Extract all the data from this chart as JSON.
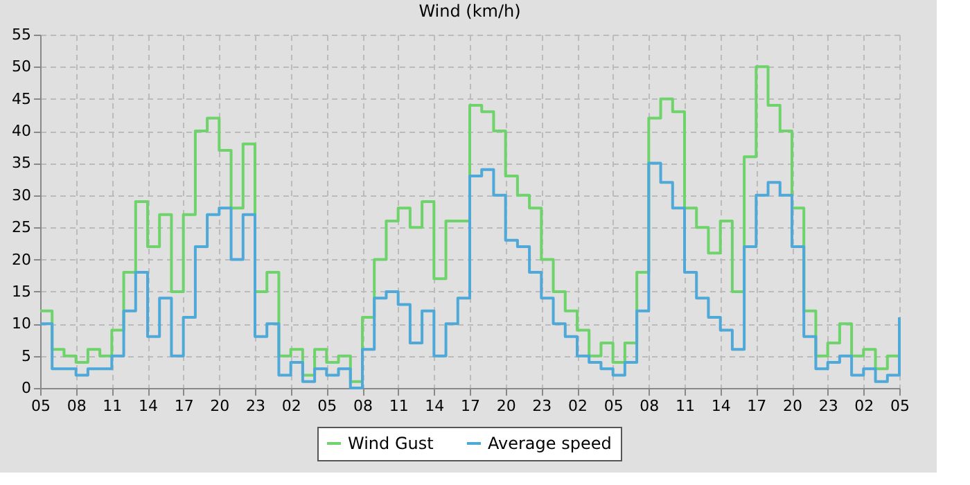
{
  "chart_data": {
    "type": "step",
    "title": "Wind (km/h)",
    "categories": [
      "05",
      null,
      null,
      "08",
      null,
      null,
      "11",
      null,
      null,
      "14",
      null,
      null,
      "17",
      null,
      null,
      "20",
      null,
      null,
      "23",
      null,
      null,
      "02",
      null,
      null,
      "05",
      null,
      null,
      "08",
      null,
      null,
      "11",
      null,
      null,
      "14",
      null,
      null,
      "17",
      null,
      null,
      "20",
      null,
      null,
      "23",
      null,
      null,
      "02",
      null,
      null,
      "05",
      null,
      null,
      "08",
      null,
      null,
      "11",
      null,
      null,
      "14",
      null,
      null,
      "17",
      null,
      null,
      "20",
      null,
      null,
      "23",
      null,
      null,
      "02",
      null,
      null,
      "05"
    ],
    "series": [
      {
        "name": "Wind Gust",
        "color": "#6ed36a",
        "values": [
          12,
          6,
          5,
          4,
          6,
          5,
          9,
          18,
          29,
          22,
          27,
          15,
          27,
          40,
          42,
          37,
          28,
          38,
          15,
          18,
          5,
          6,
          2,
          6,
          4,
          5,
          1,
          11,
          20,
          26,
          28,
          25,
          29,
          17,
          26,
          26,
          44,
          43,
          40,
          33,
          30,
          28,
          20,
          15,
          12,
          9,
          5,
          7,
          4,
          7,
          18,
          42,
          45,
          43,
          28,
          25,
          21,
          26,
          15,
          36,
          50,
          44,
          40,
          28,
          12,
          5,
          7,
          10,
          5,
          6,
          3,
          5,
          11
        ]
      },
      {
        "name": "Average speed",
        "color": "#4ea8d8",
        "values": [
          10,
          3,
          3,
          2,
          3,
          3,
          5,
          12,
          18,
          8,
          14,
          5,
          11,
          22,
          27,
          28,
          20,
          27,
          8,
          10,
          2,
          4,
          1,
          3,
          2,
          3,
          0,
          6,
          14,
          15,
          13,
          7,
          12,
          5,
          10,
          14,
          33,
          34,
          30,
          23,
          22,
          18,
          14,
          10,
          8,
          5,
          4,
          3,
          2,
          4,
          12,
          35,
          32,
          28,
          18,
          14,
          11,
          9,
          6,
          22,
          30,
          32,
          30,
          22,
          8,
          3,
          4,
          5,
          2,
          3,
          1,
          2,
          11
        ]
      }
    ],
    "ylim": [
      0,
      55
    ],
    "yticks": [
      0,
      5,
      10,
      15,
      20,
      25,
      30,
      35,
      40,
      45,
      50,
      55
    ],
    "grid": true,
    "legend": "bottom",
    "line_style": "solid"
  }
}
